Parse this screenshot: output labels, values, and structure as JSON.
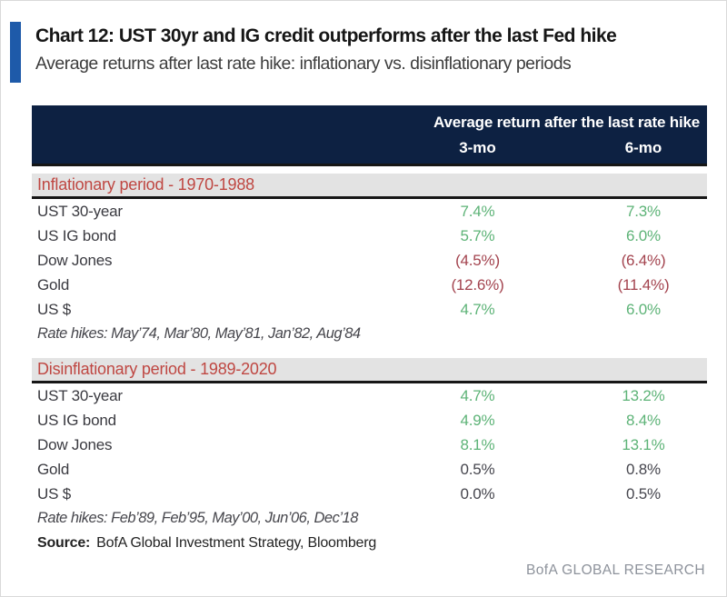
{
  "header": {
    "title": "Chart 12: UST 30yr and IG credit outperforms after the last Fed hike",
    "subtitle": "Average returns after last rate hike: inflationary vs. disinflationary periods"
  },
  "footer": {
    "source_label": "Source:",
    "source_text": "BofA Global Investment Strategy, Bloomberg",
    "brand": "BofA GLOBAL RESEARCH"
  },
  "colors": {
    "accent_bar_blue": "#1e5aa9",
    "table_header_navy": "#0d2142",
    "section_title_red": "#bf4742",
    "section_band_gray": "#e3e3e3",
    "positive_green": "#5db377",
    "negative_red": "#a3434e",
    "neutral_dark": "#46464e"
  },
  "chart_data": {
    "type": "table",
    "title": "Average return after the last rate hike",
    "columns": [
      "3-mo",
      "6-mo"
    ],
    "sections": [
      {
        "title": "Inflationary period - 1970-1988",
        "rows": [
          {
            "label": "UST 30-year",
            "m3": "7.4%",
            "m6": "7.3%",
            "tone": "pos"
          },
          {
            "label": "US IG bond",
            "m3": "5.7%",
            "m6": "6.0%",
            "tone": "pos"
          },
          {
            "label": "Dow Jones",
            "m3": "(4.5%)",
            "m6": "(6.4%)",
            "tone": "neg"
          },
          {
            "label": "Gold",
            "m3": "(12.6%)",
            "m6": "(11.4%)",
            "tone": "neg"
          },
          {
            "label": "US $",
            "m3": "4.7%",
            "m6": "6.0%",
            "tone": "pos"
          }
        ],
        "footnote": "Rate hikes: May’74, Mar’80, May’81, Jan’82, Aug’84"
      },
      {
        "title": "Disinflationary period - 1989-2020",
        "rows": [
          {
            "label": "UST 30-year",
            "m3": "4.7%",
            "m6": "13.2%",
            "tone": "pos"
          },
          {
            "label": "US IG bond",
            "m3": "4.9%",
            "m6": "8.4%",
            "tone": "pos"
          },
          {
            "label": "Dow Jones",
            "m3": "8.1%",
            "m6": "13.1%",
            "tone": "pos"
          },
          {
            "label": "Gold",
            "m3": "0.5%",
            "m6": "0.8%",
            "tone": "flat"
          },
          {
            "label": "US $",
            "m3": "0.0%",
            "m6": "0.5%",
            "tone": "flat"
          }
        ],
        "footnote": "Rate hikes: Feb’89, Feb’95, May’00, Jun’06, Dec’18"
      }
    ]
  }
}
